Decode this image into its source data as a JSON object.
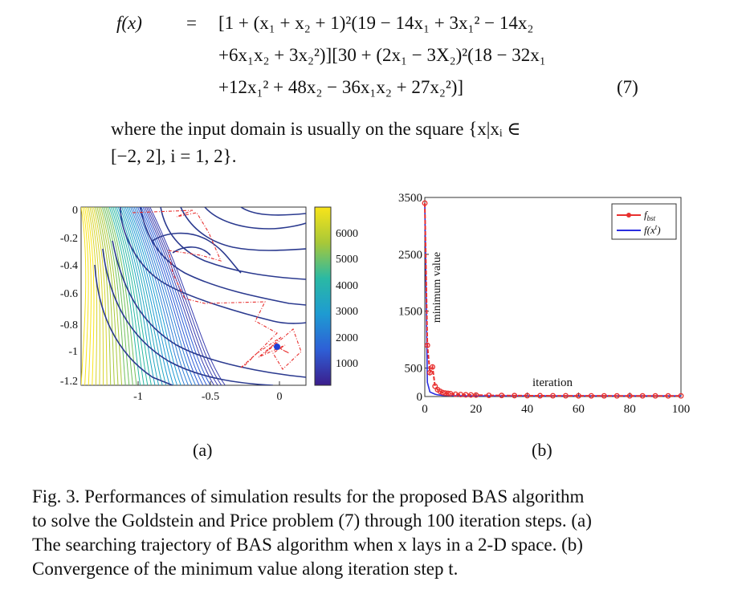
{
  "equation": {
    "lhs": "f(x)",
    "eq_sign": "=",
    "line1": "[1 + (x₁ + x₂ + 1)²(19 − 14x₁ + 3x₁² − 14x₂",
    "line2": "+6x₁x₂ + 3x₂²)][30 + (2x₁ − 3X₂)²(18 − 32x₁",
    "line3": "+12x₁² + 48x₂ − 36x₁x₂ + 27x₂²)]",
    "number": "(7)"
  },
  "paragraph": {
    "line1": "where the input domain is usually on the square {x|xᵢ ∈",
    "line2": "[−2, 2], i = 1, 2}."
  },
  "figure_a": {
    "label": "(a)",
    "xticks": [
      "-1",
      "-0.5",
      "0"
    ],
    "yticks": [
      "0",
      "-0.2",
      "-0.4",
      "-0.6",
      "-0.8",
      "-1",
      "-1.2"
    ],
    "colorbar_ticks": [
      "6000",
      "5000",
      "4000",
      "3000",
      "2000",
      "1000"
    ],
    "colors": {
      "contour_dark": "#2b3a8f",
      "trajectory": "#e8302f",
      "marker": "#1f3fd6"
    }
  },
  "figure_b": {
    "label": "(b)",
    "xlabel": "iteration",
    "ylabel": "minimum value",
    "legend": {
      "fbst_base": "f",
      "fbst_sub": "bst",
      "fxt_base": "f(x",
      "fxt_sup": "t",
      "fxt_end": ")"
    },
    "colors": {
      "fbst": "#e8302f",
      "fxt": "#2a2ee0"
    }
  },
  "chart_data": {
    "type": "line",
    "title": "",
    "xlabel": "iteration",
    "ylabel": "minimum value",
    "xlim": [
      0,
      100
    ],
    "ylim": [
      0,
      3500
    ],
    "xticks": [
      0,
      20,
      40,
      60,
      80,
      100
    ],
    "yticks": [
      0,
      500,
      1500,
      2500,
      3500
    ],
    "legend_position": "top-right",
    "series": [
      {
        "name": "f_bst",
        "x": [
          0,
          1,
          2,
          3,
          4,
          5,
          6,
          7,
          8,
          9,
          10,
          12,
          14,
          16,
          18,
          20,
          25,
          30,
          35,
          40,
          45,
          50,
          55,
          60,
          65,
          70,
          75,
          80,
          85,
          90,
          95,
          100
        ],
        "values": [
          3400,
          900,
          420,
          520,
          180,
          120,
          90,
          70,
          60,
          55,
          50,
          40,
          35,
          30,
          28,
          25,
          20,
          18,
          16,
          15,
          14,
          13,
          13,
          12,
          12,
          12,
          11,
          11,
          11,
          11,
          11,
          11
        ]
      },
      {
        "name": "f(x^t)",
        "x": [
          0,
          1,
          2,
          3,
          4,
          5,
          6,
          7,
          8,
          9,
          10,
          12,
          14,
          16,
          18,
          20,
          25,
          30,
          35,
          40,
          45,
          50,
          55,
          60,
          65,
          70,
          75,
          80,
          85,
          90,
          95,
          100
        ],
        "values": [
          3400,
          250,
          80,
          60,
          40,
          30,
          25,
          20,
          18,
          16,
          15,
          14,
          13,
          12,
          12,
          11,
          11,
          11,
          11,
          11,
          11,
          11,
          11,
          11,
          11,
          11,
          11,
          11,
          11,
          11,
          11,
          11
        ]
      }
    ]
  },
  "caption": {
    "line1": "Fig. 3.  Performances of simulation results for the proposed BAS algorithm",
    "line2": "to solve the Goldstein and Price problem (7) through 100 iteration steps. (a)",
    "line3": "The searching trajectory of BAS algorithm when x lays in a 2-D space. (b)",
    "line4": "Convergence of the minimum value along iteration step t."
  }
}
